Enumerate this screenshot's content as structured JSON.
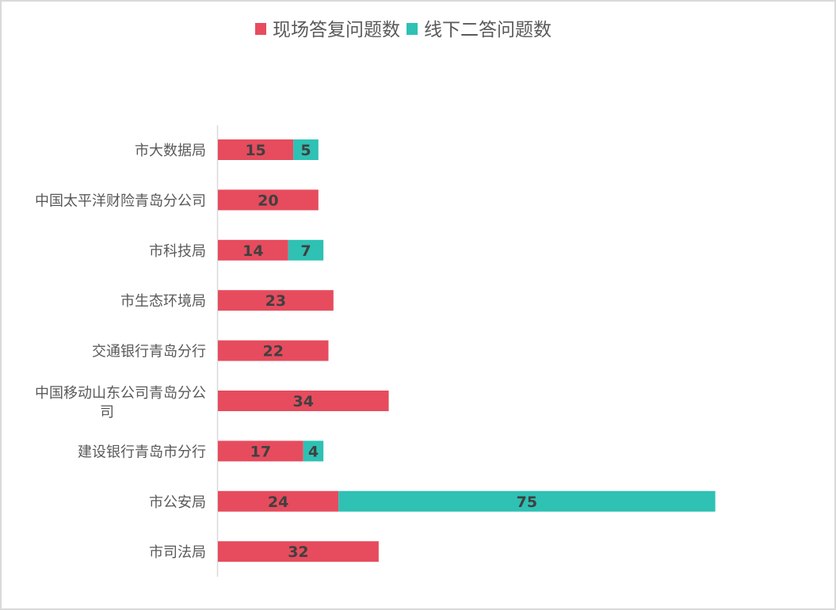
{
  "chart_data": {
    "type": "bar",
    "orientation": "horizontal",
    "stacked": true,
    "categories": [
      "市大数据局",
      "中国太平洋财险青岛分公司",
      "市科技局",
      "市生态环境局",
      "交通银行青岛分行",
      "中国移动山东公司青岛分公司",
      "建设银行青岛市分行",
      "市公安局",
      "市司法局"
    ],
    "series": [
      {
        "name": "现场答复问题数",
        "color": "#E64C5E",
        "values": [
          15,
          20,
          14,
          23,
          22,
          34,
          17,
          24,
          32
        ]
      },
      {
        "name": "线下二答问题数",
        "color": "#2EC1B4",
        "values": [
          5,
          null,
          7,
          null,
          null,
          null,
          4,
          75,
          null
        ]
      }
    ],
    "xlim": [
      0,
      100
    ],
    "grid": false,
    "legend": "top",
    "data_labels": true
  }
}
